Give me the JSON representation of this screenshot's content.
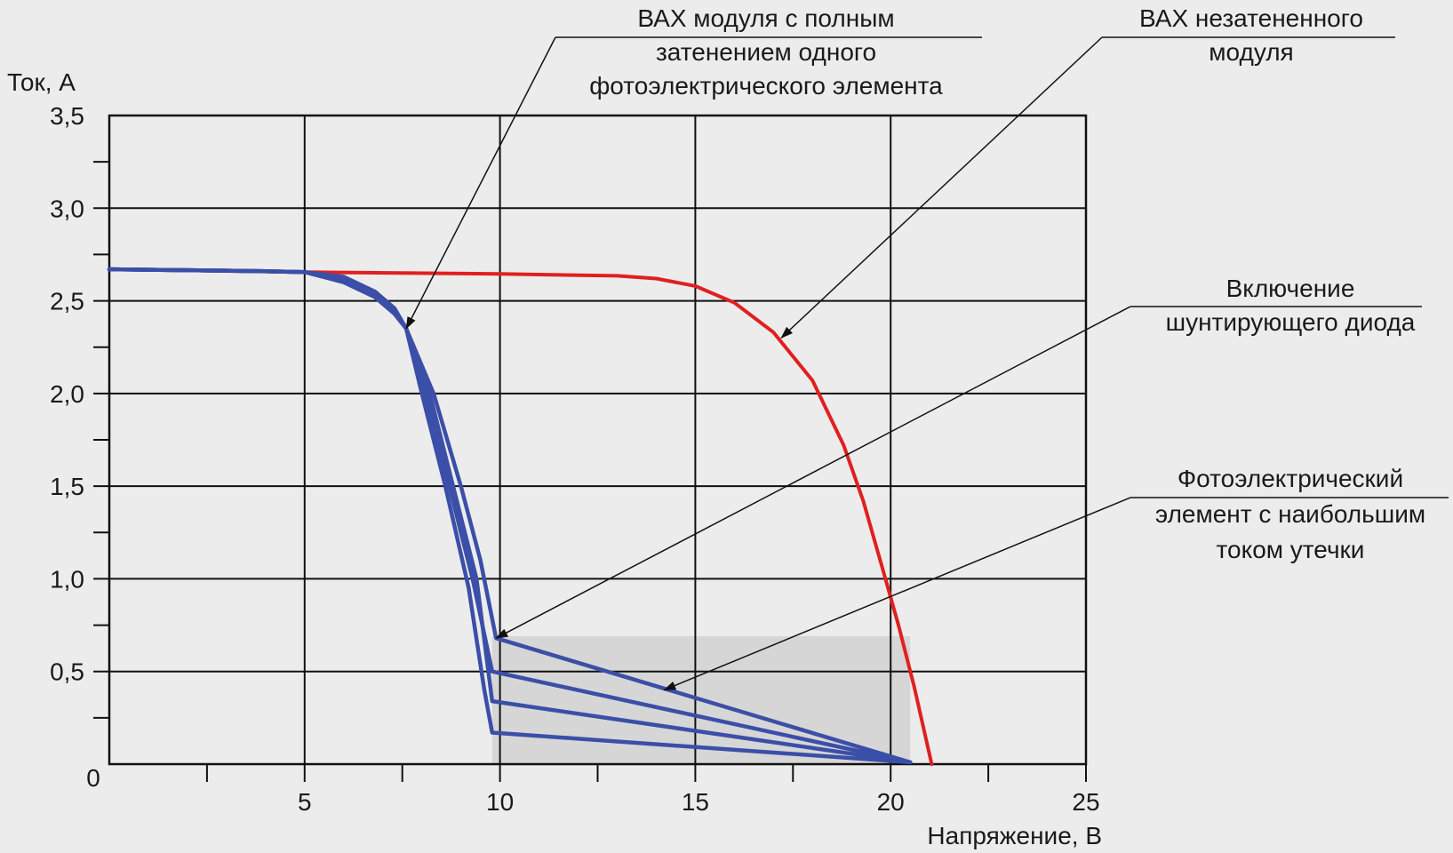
{
  "chart_data": {
    "type": "line",
    "ylabel": "Ток, А",
    "xlabel": "Напряжение, В",
    "xlim": [
      0,
      25
    ],
    "ylim": [
      0,
      3.5
    ],
    "x_ticks": [
      {
        "value": 0,
        "label": "0"
      },
      {
        "value": 5,
        "label": "5"
      },
      {
        "value": 10,
        "label": "10"
      },
      {
        "value": 15,
        "label": "15"
      },
      {
        "value": 20,
        "label": "20"
      },
      {
        "value": 25,
        "label": "25"
      }
    ],
    "y_ticks": [
      {
        "value": 0.5,
        "label": "0,5"
      },
      {
        "value": 1.0,
        "label": "1,0"
      },
      {
        "value": 1.5,
        "label": "1,5"
      },
      {
        "value": 2.0,
        "label": "2,0"
      },
      {
        "value": 2.5,
        "label": "2,5"
      },
      {
        "value": 3.0,
        "label": "3,0"
      },
      {
        "value": 3.5,
        "label": "3,5"
      }
    ],
    "grid": true,
    "shaded_region": {
      "x": [
        9.8,
        20.5
      ],
      "y": [
        0,
        0.69
      ],
      "color": "#d6d6d6"
    },
    "series": [
      {
        "color": "#e02020",
        "points": [
          [
            0,
            2.67
          ],
          [
            5,
            2.655
          ],
          [
            10,
            2.645
          ],
          [
            13,
            2.635
          ],
          [
            14,
            2.62
          ],
          [
            15,
            2.58
          ],
          [
            16,
            2.49
          ],
          [
            17,
            2.33
          ],
          [
            18,
            2.07
          ],
          [
            18.8,
            1.72
          ],
          [
            19.3,
            1.42
          ],
          [
            19.8,
            1.05
          ],
          [
            20.2,
            0.75
          ],
          [
            20.6,
            0.42
          ],
          [
            21.05,
            0
          ]
        ]
      },
      {
        "color": "#3b4fa8",
        "points": [
          [
            0,
            2.67
          ],
          [
            4,
            2.66
          ],
          [
            5,
            2.655
          ],
          [
            6,
            2.63
          ],
          [
            6.8,
            2.55
          ],
          [
            7.3,
            2.46
          ],
          [
            7.6,
            2.35
          ],
          [
            8.0,
            2.0
          ],
          [
            8.6,
            1.5
          ],
          [
            9.2,
            0.95
          ],
          [
            9.6,
            0.4
          ],
          [
            9.8,
            0.17
          ],
          [
            20.5,
            0.01
          ]
        ]
      },
      {
        "color": "#3b4fa8",
        "points": [
          [
            0,
            2.67
          ],
          [
            4,
            2.66
          ],
          [
            5,
            2.655
          ],
          [
            6,
            2.62
          ],
          [
            6.8,
            2.54
          ],
          [
            7.3,
            2.45
          ],
          [
            7.6,
            2.35
          ],
          [
            8.1,
            2.0
          ],
          [
            8.7,
            1.5
          ],
          [
            9.3,
            1.0
          ],
          [
            9.8,
            0.5
          ],
          [
            20.5,
            0.01
          ]
        ]
      },
      {
        "color": "#3b4fa8",
        "points": [
          [
            0,
            2.67
          ],
          [
            4,
            2.66
          ],
          [
            5,
            2.655
          ],
          [
            6,
            2.61
          ],
          [
            6.8,
            2.53
          ],
          [
            7.3,
            2.44
          ],
          [
            7.6,
            2.35
          ],
          [
            8.2,
            2.0
          ],
          [
            8.8,
            1.5
          ],
          [
            9.4,
            1.0
          ],
          [
            9.8,
            0.34
          ],
          [
            20.5,
            0.01
          ]
        ]
      },
      {
        "color": "#3b4fa8",
        "points": [
          [
            0,
            2.67
          ],
          [
            4,
            2.66
          ],
          [
            5,
            2.655
          ],
          [
            6,
            2.6
          ],
          [
            6.8,
            2.52
          ],
          [
            7.3,
            2.43
          ],
          [
            7.6,
            2.35
          ],
          [
            8.3,
            2.0
          ],
          [
            9.0,
            1.5
          ],
          [
            9.5,
            1.1
          ],
          [
            9.9,
            0.68
          ],
          [
            20.5,
            0.01
          ]
        ]
      }
    ],
    "annotations": [
      {
        "lines": [
          "ВАХ модуля с полным",
          "затенением одного",
          "фотоэлектрического элемента"
        ],
        "target": [
          7.6,
          2.35
        ]
      },
      {
        "lines": [
          "ВАХ незатененного",
          "модуля"
        ],
        "target": [
          17.2,
          2.3
        ]
      },
      {
        "lines": [
          "Включение",
          "шунтирующего диода"
        ],
        "target": [
          9.9,
          0.68
        ]
      },
      {
        "lines": [
          "Фотоэлектрический",
          "элемент с наибольшим",
          "током утечки"
        ],
        "target": [
          14.2,
          0.4
        ]
      }
    ]
  }
}
